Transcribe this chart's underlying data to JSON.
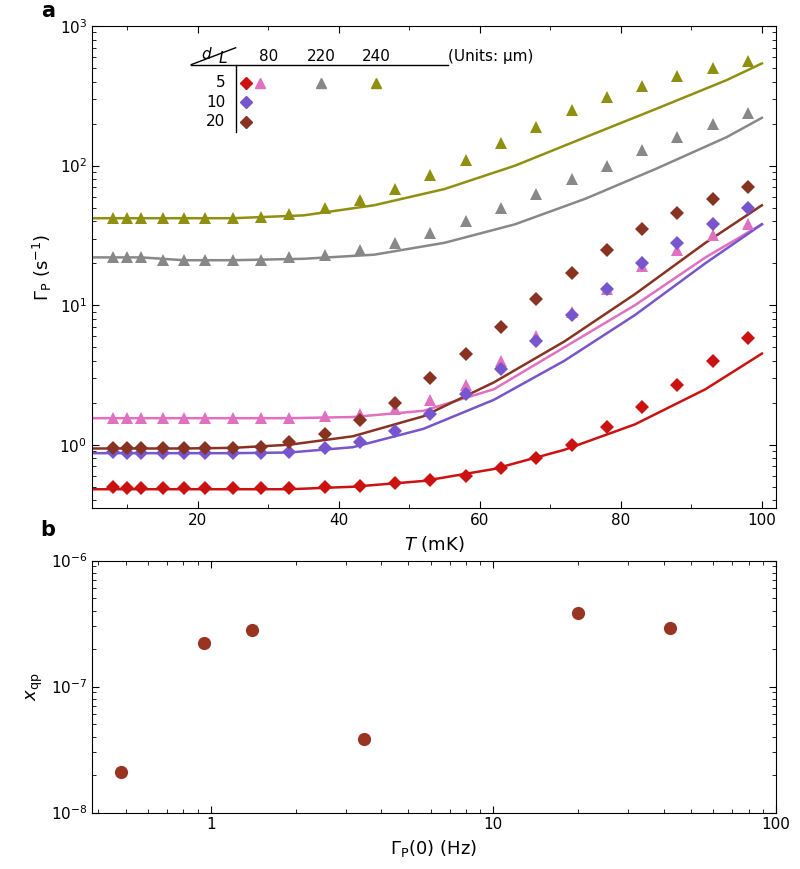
{
  "panel_a": {
    "xlim": [
      5,
      102
    ],
    "ylim": [
      0.35,
      1000
    ],
    "xlabel": "T (mK)",
    "series": [
      {
        "label": "d5_L80_diamond",
        "color": "#cc1111",
        "marker": "D",
        "marker_size": 7,
        "x_data": [
          8,
          10,
          12,
          15,
          18,
          21,
          25,
          29,
          33,
          38,
          43,
          48,
          53,
          58,
          63,
          68,
          73,
          78,
          83,
          88,
          93,
          98
        ],
        "y_data": [
          0.5,
          0.49,
          0.49,
          0.49,
          0.49,
          0.49,
          0.49,
          0.49,
          0.49,
          0.5,
          0.51,
          0.53,
          0.56,
          0.6,
          0.68,
          0.8,
          1.0,
          1.35,
          1.85,
          2.7,
          4.0,
          5.8
        ],
        "fit_x": [
          5,
          8,
          12,
          18,
          25,
          33,
          42,
          52,
          62,
          72,
          82,
          92,
          100
        ],
        "fit_y": [
          0.48,
          0.48,
          0.48,
          0.48,
          0.48,
          0.48,
          0.5,
          0.55,
          0.67,
          0.92,
          1.4,
          2.5,
          4.5
        ]
      },
      {
        "label": "d5_L80_triangle",
        "color": "#e070c0",
        "marker": "^",
        "marker_size": 8,
        "x_data": [
          8,
          10,
          12,
          15,
          18,
          21,
          25,
          29,
          33,
          38,
          43,
          48,
          53,
          58,
          63,
          68,
          73,
          78,
          83,
          88,
          93,
          98
        ],
        "y_data": [
          1.55,
          1.55,
          1.55,
          1.55,
          1.55,
          1.55,
          1.55,
          1.55,
          1.55,
          1.6,
          1.65,
          1.8,
          2.1,
          2.7,
          4.0,
          6.0,
          9.0,
          13,
          19,
          25,
          32,
          38
        ],
        "fit_x": [
          5,
          8,
          12,
          18,
          25,
          33,
          42,
          52,
          62,
          72,
          82,
          92,
          100
        ],
        "fit_y": [
          1.55,
          1.55,
          1.55,
          1.55,
          1.55,
          1.55,
          1.58,
          1.75,
          2.5,
          5.0,
          10,
          22,
          38
        ]
      },
      {
        "label": "d5_L220_triangle",
        "color": "#888888",
        "marker": "^",
        "marker_size": 8,
        "x_data": [
          8,
          10,
          12,
          15,
          18,
          21,
          25,
          29,
          33,
          38,
          43,
          48,
          53,
          58,
          63,
          68,
          73,
          78,
          83,
          88,
          93,
          98
        ],
        "y_data": [
          22,
          22,
          22,
          21,
          21,
          21,
          21,
          21,
          22,
          23,
          25,
          28,
          33,
          40,
          50,
          63,
          80,
          100,
          130,
          160,
          200,
          240
        ],
        "fit_x": [
          5,
          8,
          12,
          18,
          25,
          35,
          45,
          55,
          65,
          75,
          85,
          95,
          100
        ],
        "fit_y": [
          22,
          22,
          22,
          21,
          21,
          21.5,
          23,
          28,
          38,
          58,
          95,
          160,
          220
        ]
      },
      {
        "label": "d5_L240_triangle",
        "color": "#909010",
        "marker": "^",
        "marker_size": 8,
        "x_data": [
          8,
          10,
          12,
          15,
          18,
          21,
          25,
          29,
          33,
          38,
          43,
          48,
          53,
          58,
          63,
          68,
          73,
          78,
          83,
          88,
          93,
          98
        ],
        "y_data": [
          42,
          42,
          42,
          42,
          42,
          42,
          42,
          43,
          45,
          50,
          57,
          68,
          85,
          110,
          145,
          190,
          250,
          310,
          370,
          440,
          500,
          560
        ],
        "fit_x": [
          5,
          8,
          12,
          18,
          25,
          35,
          45,
          55,
          65,
          75,
          85,
          95,
          100
        ],
        "fit_y": [
          42,
          42,
          42,
          42,
          42,
          44,
          52,
          68,
          100,
          160,
          255,
          410,
          540
        ]
      },
      {
        "label": "d10_L80_diamond",
        "color": "#7755cc",
        "marker": "D",
        "marker_size": 7,
        "x_data": [
          8,
          10,
          12,
          15,
          18,
          21,
          25,
          29,
          33,
          38,
          43,
          48,
          53,
          58,
          63,
          68,
          73,
          78,
          83,
          88,
          93,
          98
        ],
        "y_data": [
          0.88,
          0.87,
          0.87,
          0.87,
          0.87,
          0.87,
          0.87,
          0.87,
          0.89,
          0.95,
          1.05,
          1.25,
          1.65,
          2.3,
          3.5,
          5.5,
          8.5,
          13,
          20,
          28,
          38,
          50
        ],
        "fit_x": [
          5,
          8,
          12,
          18,
          25,
          33,
          42,
          52,
          62,
          72,
          82,
          92,
          100
        ],
        "fit_y": [
          0.87,
          0.87,
          0.87,
          0.87,
          0.87,
          0.88,
          0.96,
          1.3,
          2.1,
          4.0,
          8.5,
          20,
          38
        ]
      },
      {
        "label": "d20_L80_diamond",
        "color": "#883322",
        "marker": "D",
        "marker_size": 7,
        "x_data": [
          8,
          10,
          12,
          15,
          18,
          21,
          25,
          29,
          33,
          38,
          43,
          48,
          53,
          58,
          63,
          68,
          73,
          78,
          83,
          88,
          93,
          98
        ],
        "y_data": [
          0.95,
          0.94,
          0.94,
          0.94,
          0.94,
          0.94,
          0.95,
          0.97,
          1.05,
          1.2,
          1.5,
          2.0,
          3.0,
          4.5,
          7.0,
          11,
          17,
          25,
          35,
          46,
          58,
          70
        ],
        "fit_x": [
          5,
          8,
          12,
          18,
          25,
          33,
          42,
          52,
          62,
          72,
          82,
          92,
          100
        ],
        "fit_y": [
          0.94,
          0.94,
          0.94,
          0.94,
          0.95,
          1.0,
          1.15,
          1.6,
          2.8,
          5.5,
          12,
          28,
          52
        ]
      }
    ]
  },
  "panel_b": {
    "xlabel": "Gamma_P(0) (Hz)",
    "ylabel": "x_qp",
    "color": "#993322",
    "x_data": [
      0.48,
      0.95,
      1.4,
      3.5,
      20,
      42
    ],
    "y_data": [
      2.1e-08,
      2.2e-07,
      2.8e-07,
      3.8e-08,
      3.8e-07,
      2.9e-07
    ]
  }
}
